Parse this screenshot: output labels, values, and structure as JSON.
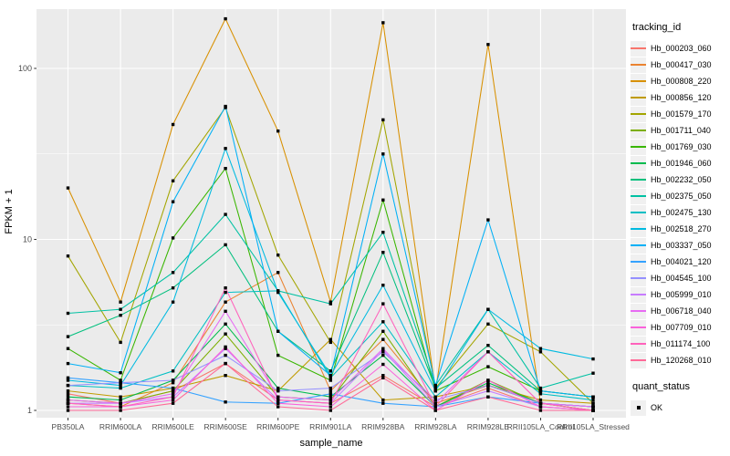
{
  "chart_data": {
    "type": "line",
    "title": "",
    "xlabel": "sample_name",
    "ylabel": "FPKM + 1",
    "y_scale": "log10",
    "ylim": [
      0.93,
      230
    ],
    "y_major_ticks": [
      1,
      10,
      100
    ],
    "y_minor_breaks": [
      3.162,
      31.62
    ],
    "grid": "on",
    "panel_bg": "#EBEBEB",
    "grid_color": "#FFFFFF",
    "tick_label_color": "#4D4D4D",
    "marker": "black-square",
    "legend_position": "right",
    "legend_title": "tracking_id",
    "quant_legend": {
      "title": "quant_status",
      "items": [
        {
          "label": "OK"
        }
      ]
    },
    "categories": [
      "PB350LA",
      "RRIM600LA",
      "RRIM600LE",
      "RRIM600SE",
      "RRIM600PE",
      "RRIM901LA",
      "RRIM928BA",
      "RRIM928LA",
      "RRIM928LE",
      "RRII105LA_Control",
      "RRII105LA_Stressed"
    ],
    "series": [
      {
        "name": "Hb_000203_060",
        "color": "#F8766D",
        "values": [
          1.25,
          1.1,
          1.3,
          1.88,
          1.15,
          1.1,
          1.6,
          1.05,
          1.35,
          1.05,
          1.0
        ]
      },
      {
        "name": "Hb_000417_030",
        "color": "#EA8331",
        "values": [
          1.1,
          1.05,
          1.45,
          4.3,
          6.4,
          1.3,
          2.6,
          1.1,
          1.4,
          1.1,
          1.05
        ]
      },
      {
        "name": "Hb_000808_220",
        "color": "#D89000",
        "values": [
          20,
          4.3,
          47,
          195,
          43,
          4.3,
          185,
          1.3,
          138,
          1.1,
          1.0
        ]
      },
      {
        "name": "Hb_000856_120",
        "color": "#C09B00",
        "values": [
          1.3,
          1.2,
          1.35,
          1.6,
          1.3,
          2.6,
          1.15,
          1.2,
          1.4,
          1.15,
          1.1
        ]
      },
      {
        "name": "Hb_001579_170",
        "color": "#A3A500",
        "values": [
          8.0,
          2.5,
          22,
          59,
          8.1,
          2.5,
          50,
          1.35,
          3.2,
          2.2,
          1.1
        ]
      },
      {
        "name": "Hb_001711_040",
        "color": "#7CAE00",
        "values": [
          1.15,
          1.1,
          1.3,
          2.8,
          1.2,
          1.15,
          2.9,
          1.05,
          1.5,
          1.1,
          1.0
        ]
      },
      {
        "name": "Hb_001769_030",
        "color": "#39B600",
        "values": [
          2.3,
          1.5,
          10.2,
          26,
          2.1,
          1.5,
          17,
          1.3,
          1.8,
          1.3,
          1.2
        ]
      },
      {
        "name": "Hb_001946_060",
        "color": "#00BB4E",
        "values": [
          1.2,
          1.15,
          1.5,
          3.2,
          1.35,
          1.2,
          2.1,
          1.05,
          1.45,
          1.1,
          1.05
        ]
      },
      {
        "name": "Hb_002232_050",
        "color": "#00BF7D",
        "values": [
          2.7,
          3.6,
          5.2,
          9.3,
          2.9,
          1.7,
          8.4,
          1.35,
          2.4,
          1.3,
          1.2
        ]
      },
      {
        "name": "Hb_002375_050",
        "color": "#00C1A3",
        "values": [
          3.7,
          3.9,
          6.4,
          14,
          5.0,
          4.2,
          11,
          1.4,
          3.9,
          1.35,
          1.65
        ]
      },
      {
        "name": "Hb_002475_130",
        "color": "#00BFC4",
        "values": [
          1.4,
          1.35,
          1.7,
          4.9,
          5.0,
          1.55,
          3.3,
          1.2,
          2.2,
          1.25,
          1.15
        ]
      },
      {
        "name": "Hb_002518_270",
        "color": "#00BAE0",
        "values": [
          1.5,
          1.4,
          4.3,
          34,
          4.9,
          1.6,
          5.4,
          1.3,
          3.9,
          2.3,
          2.0
        ]
      },
      {
        "name": "Hb_003337_050",
        "color": "#00B0F6",
        "values": [
          1.88,
          1.66,
          16.6,
          60,
          2.9,
          1.6,
          31.6,
          1.4,
          13,
          1.3,
          1.2
        ]
      },
      {
        "name": "Hb_004021_120",
        "color": "#35A2FF",
        "values": [
          1.55,
          1.45,
          1.35,
          1.12,
          1.1,
          1.25,
          1.1,
          1.05,
          1.2,
          1.1,
          1.05
        ]
      },
      {
        "name": "Hb_004545_100",
        "color": "#9590FF",
        "values": [
          1.4,
          1.45,
          1.5,
          2.1,
          1.3,
          1.35,
          2.2,
          1.15,
          1.4,
          1.1,
          1.05
        ]
      },
      {
        "name": "Hb_005999_010",
        "color": "#C77CFF",
        "values": [
          1.1,
          1.1,
          1.2,
          2.3,
          1.15,
          1.1,
          2.25,
          1.05,
          1.3,
          1.05,
          1.0
        ]
      },
      {
        "name": "Hb_006718_040",
        "color": "#E76BF3",
        "values": [
          1.15,
          1.1,
          1.25,
          3.8,
          1.2,
          1.15,
          2.3,
          1.1,
          2.2,
          1.1,
          1.05
        ]
      },
      {
        "name": "Hb_007709_010",
        "color": "#FA62DB",
        "values": [
          1.05,
          1.05,
          1.15,
          2.35,
          1.1,
          1.05,
          1.86,
          1.0,
          1.5,
          1.05,
          1.0
        ]
      },
      {
        "name": "Hb_011174_100",
        "color": "#FF62BC",
        "values": [
          1.1,
          1.05,
          1.2,
          5.2,
          1.15,
          1.1,
          4.2,
          1.05,
          2.2,
          1.1,
          1.0
        ]
      },
      {
        "name": "Hb_120268_010",
        "color": "#FF6A98",
        "values": [
          1.0,
          1.0,
          1.1,
          1.88,
          1.05,
          1.0,
          1.55,
          1.0,
          1.2,
          1.0,
          1.0
        ]
      }
    ]
  }
}
